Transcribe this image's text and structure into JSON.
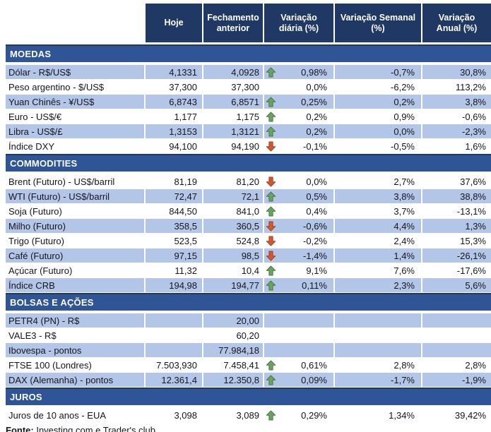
{
  "header": {
    "columns": [
      "Hoje",
      "Fechamento anterior",
      "Variação diária (%)",
      "Variação Semanal (%)",
      "Variação Anual (%)"
    ]
  },
  "sections": [
    {
      "title": "MOEDAS",
      "rows": [
        {
          "label": "Dólar - R$/US$",
          "hoje": "4,1331",
          "fechamento": "4,0928",
          "arrow": "up",
          "diaria": "0,98%",
          "semanal": "-0,7%",
          "anual": "30,8%",
          "shade": true
        },
        {
          "label": "Peso argentino - $/US$",
          "hoje": "37,300",
          "fechamento": "37,300",
          "arrow": "none",
          "diaria": "0,0%",
          "semanal": "-6,2%",
          "anual": "113,2%",
          "shade": false
        },
        {
          "label": "Yuan Chinês - ¥/US$",
          "hoje": "6,8743",
          "fechamento": "6,8571",
          "arrow": "up",
          "diaria": "0,25%",
          "semanal": "0,2%",
          "anual": "3,8%",
          "shade": true
        },
        {
          "label": "Euro - US$/€",
          "hoje": "1,177",
          "fechamento": "1,175",
          "arrow": "up",
          "diaria": "0,2%",
          "semanal": "0,9%",
          "anual": "-0,6%",
          "shade": false
        },
        {
          "label": "Libra - US$/£",
          "hoje": "1,3153",
          "fechamento": "1,3121",
          "arrow": "up",
          "diaria": "0,2%",
          "semanal": "0,0%",
          "anual": "-2,3%",
          "shade": true
        },
        {
          "label": "Índice DXY",
          "hoje": "94,100",
          "fechamento": "94,190",
          "arrow": "down",
          "diaria": "-0,1%",
          "semanal": "-0,5%",
          "anual": "1,6%",
          "shade": false
        }
      ]
    },
    {
      "title": "COMMODITIES",
      "rows": [
        {
          "label": "Brent (Futuro) - US$/barril",
          "hoje": "81,19",
          "fechamento": "81,20",
          "arrow": "down",
          "diaria": "0,0%",
          "semanal": "2,7%",
          "anual": "37,6%",
          "shade": false
        },
        {
          "label": "WTI (Futuro) - US$/barril",
          "hoje": "72,47",
          "fechamento": "72,1",
          "arrow": "up",
          "diaria": "0,5%",
          "semanal": "3,8%",
          "anual": "38,8%",
          "shade": true
        },
        {
          "label": "Soja (Futuro)",
          "hoje": "844,50",
          "fechamento": "841,0",
          "arrow": "up",
          "diaria": "0,4%",
          "semanal": "3,7%",
          "anual": "-13,1%",
          "shade": false
        },
        {
          "label": "Milho (Futuro)",
          "hoje": "358,5",
          "fechamento": "360,5",
          "arrow": "down",
          "diaria": "-0,6%",
          "semanal": "4,4%",
          "anual": "1,3%",
          "shade": true
        },
        {
          "label": "Trigo (Futuro)",
          "hoje": "523,5",
          "fechamento": "524,8",
          "arrow": "down",
          "diaria": "-0,2%",
          "semanal": "2,4%",
          "anual": "15,3%",
          "shade": false
        },
        {
          "label": "Café (Futuro)",
          "hoje": "97,15",
          "fechamento": "98,5",
          "arrow": "down",
          "diaria": "-1,4%",
          "semanal": "1,4%",
          "anual": "-26,1%",
          "shade": true
        },
        {
          "label": "Açúcar (Futuro)",
          "hoje": "11,32",
          "fechamento": "10,4",
          "arrow": "up",
          "diaria": "9,1%",
          "semanal": "7,6%",
          "anual": "-17,6%",
          "shade": false
        },
        {
          "label": "Índice CRB",
          "hoje": "194,98",
          "fechamento": "194,77",
          "arrow": "up",
          "diaria": "0,11%",
          "semanal": "2,3%",
          "anual": "5,6%",
          "shade": true
        }
      ]
    },
    {
      "title": "BOLSAS E AÇÕES",
      "rows": [
        {
          "label": "PETR4 (PN) - R$",
          "hoje": "",
          "fechamento": "20,00",
          "arrow": "none",
          "diaria": "",
          "semanal": "",
          "anual": "",
          "shade": true
        },
        {
          "label": "VALE3 - R$",
          "hoje": "",
          "fechamento": "60,20",
          "arrow": "none",
          "diaria": "",
          "semanal": "",
          "anual": "",
          "shade": false
        },
        {
          "label": "Ibovespa - pontos",
          "hoje": "",
          "fechamento": "77.984,18",
          "arrow": "none",
          "diaria": "",
          "semanal": "",
          "anual": "",
          "shade": true
        },
        {
          "label": "FTSE 100 (Londres)",
          "hoje": "7.503,930",
          "fechamento": "7.458,41",
          "arrow": "up",
          "diaria": "0,61%",
          "semanal": "2,8%",
          "anual": "2,8%",
          "shade": false
        },
        {
          "label": "DAX (Alemanha) - pontos",
          "hoje": "12.361,4",
          "fechamento": "12.350,8",
          "arrow": "up",
          "diaria": "0,09%",
          "semanal": "-1,7%",
          "anual": "-1,9%",
          "shade": true
        }
      ]
    },
    {
      "title": "JUROS",
      "rows": [
        {
          "label": "Juros de 10 anos - EUA",
          "hoje": "3,098",
          "fechamento": "3,089",
          "arrow": "up",
          "diaria": "0,29%",
          "semanal": "1,34%",
          "anual": "39,42%",
          "shade": false
        }
      ]
    }
  ],
  "footer": {
    "label": "Fonte:",
    "text": " Investing.com e Trader's club"
  },
  "colors": {
    "header_bg": "#1F3864",
    "section_bg": "#2F5597",
    "shade_bg": "#B4C6E7",
    "arrow_up_fill": "#69A361",
    "arrow_up_stroke": "#48713F",
    "arrow_down_fill": "#D4572E",
    "arrow_down_stroke": "#9E3D1F"
  }
}
